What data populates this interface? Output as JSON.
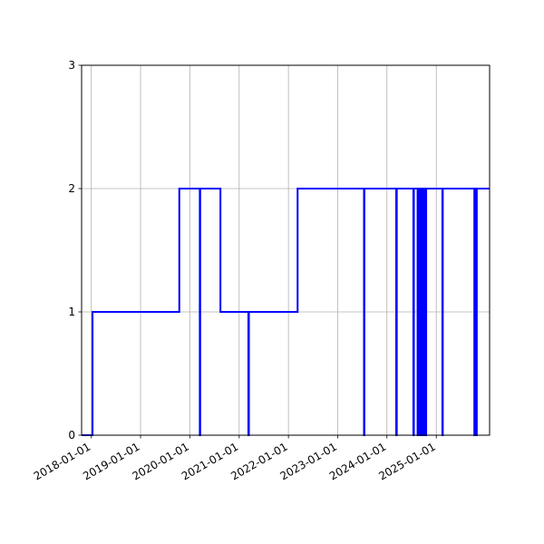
{
  "chart_data": {
    "type": "line",
    "title": "",
    "xlabel": "",
    "ylabel": "",
    "x_axis": "date",
    "xlim": [
      "2017-10-21",
      "2026-01-31"
    ],
    "ylim": [
      0,
      3
    ],
    "xticks": [
      "2018-01-01",
      "2019-01-01",
      "2020-01-01",
      "2021-01-01",
      "2022-01-01",
      "2023-01-01",
      "2024-01-01",
      "2025-01-01"
    ],
    "yticks": [
      0,
      1,
      2,
      3
    ],
    "grid": true,
    "legend": "none",
    "line_color": "#0000ff",
    "step": "post",
    "series": [
      {
        "x": [
          "2017-10-21",
          "2018-01-10",
          "2019-10-15",
          "2020-03-15",
          "2020-03-18",
          "2020-08-15",
          "2021-03-10",
          "2021-03-14",
          "2022-03-10",
          "2023-07-15",
          "2023-07-18",
          "2024-03-10",
          "2024-03-14",
          "2024-07-15",
          "2024-07-19",
          "2024-08-15",
          "2024-08-18",
          "2024-08-25",
          "2024-08-28",
          "2024-09-05",
          "2024-09-08",
          "2024-09-15",
          "2024-09-18",
          "2024-09-25",
          "2024-09-28",
          "2024-10-05",
          "2024-10-08",
          "2024-10-15",
          "2024-10-18",
          "2025-02-15",
          "2025-02-18",
          "2025-10-10",
          "2025-10-14",
          "2025-10-25",
          "2025-10-28",
          "2026-01-31"
        ],
        "y": [
          0,
          1,
          2,
          0,
          2,
          1,
          0,
          1,
          2,
          0,
          2,
          0,
          2,
          0,
          2,
          0,
          2,
          0,
          2,
          0,
          2,
          0,
          2,
          0,
          2,
          0,
          2,
          0,
          2,
          0,
          2,
          0,
          2,
          0,
          2,
          2
        ]
      }
    ]
  }
}
